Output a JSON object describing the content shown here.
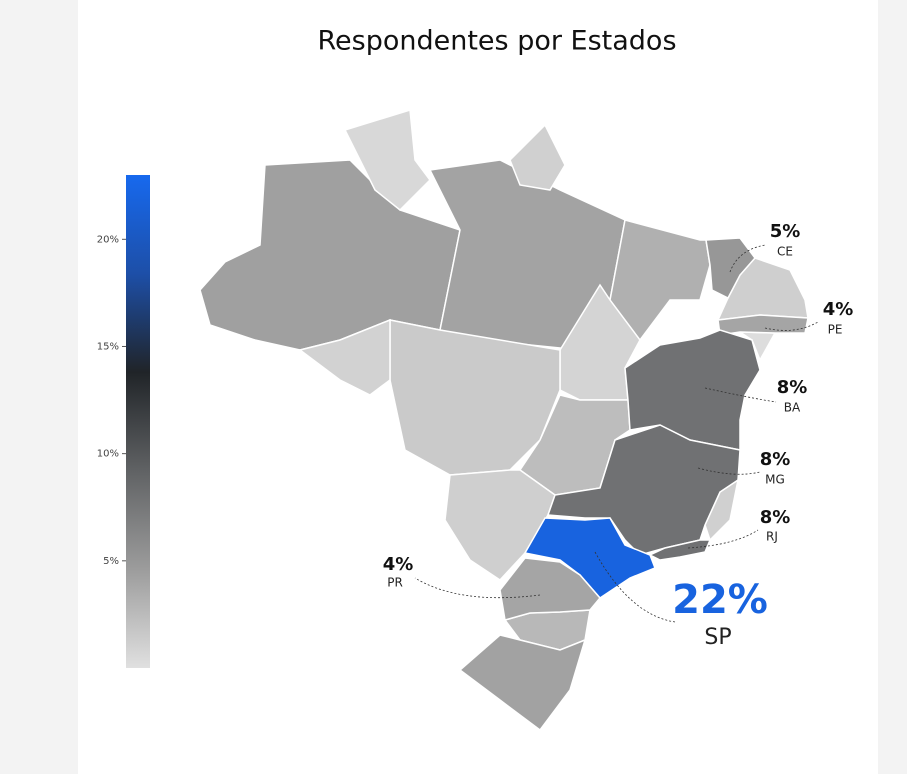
{
  "chart_data": {
    "type": "choropleth",
    "title": "Respondentes por Estados",
    "categories": [
      "CE",
      "PE",
      "BA",
      "MG",
      "RJ",
      "SP",
      "PR"
    ],
    "values": [
      5,
      4,
      8,
      8,
      8,
      22,
      4
    ],
    "value_labels": [
      "5%",
      "4%",
      "8%",
      "8%",
      "8%",
      "22%",
      "4%"
    ],
    "colorscale": [
      "#e0e0e0",
      "#9c9c9c",
      "#606264",
      "#202428",
      "#1d4fa8",
      "#1769ee"
    ],
    "clim": [
      0,
      23
    ],
    "cticks": [
      {
        "value": 5,
        "label": "5%"
      },
      {
        "value": 10,
        "label": "10%"
      },
      {
        "value": 15,
        "label": "15%"
      },
      {
        "value": 20,
        "label": "20%"
      }
    ]
  }
}
